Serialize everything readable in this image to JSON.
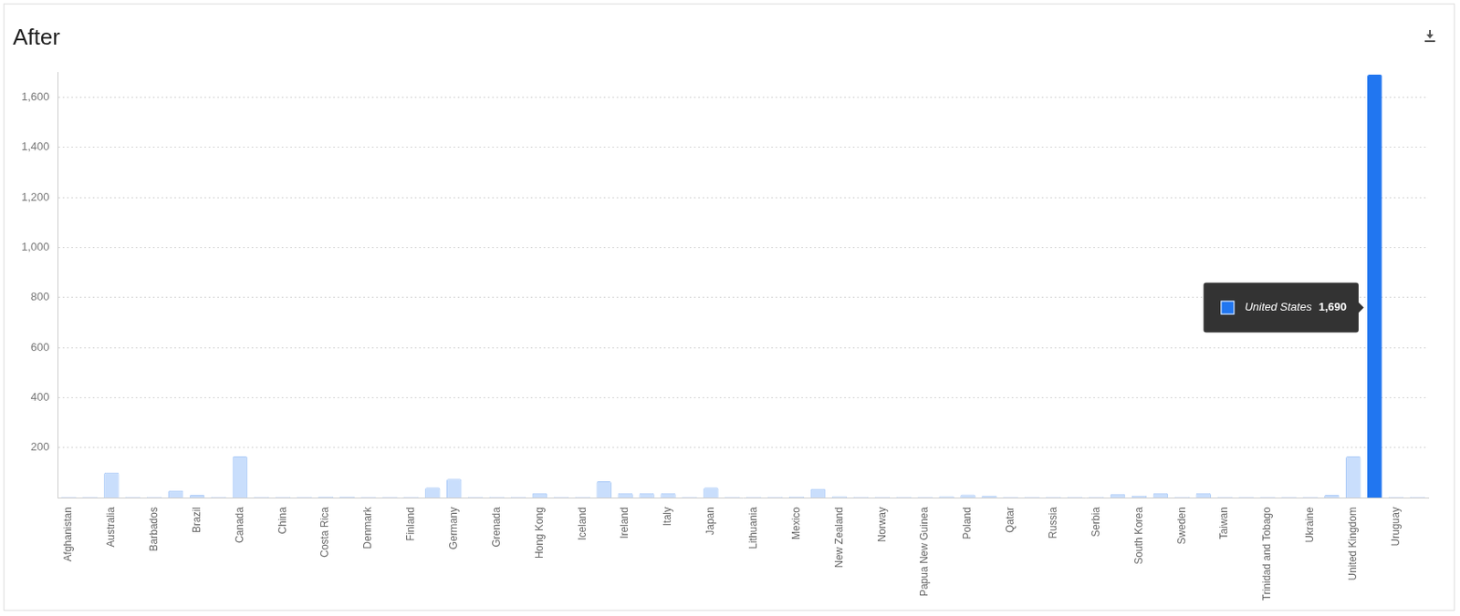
{
  "chart_data": {
    "type": "bar",
    "title": "After",
    "categories": [
      "Afghanistan",
      null,
      "Australia",
      null,
      "Barbados",
      null,
      "Brazil",
      null,
      "Canada",
      null,
      "China",
      null,
      "Costa Rica",
      null,
      "Denmark",
      null,
      "Finland",
      null,
      "Germany",
      null,
      "Grenada",
      null,
      "Hong Kong",
      null,
      "Iceland",
      null,
      "Ireland",
      null,
      "Italy",
      null,
      "Japan",
      null,
      "Lithuania",
      null,
      "Mexico",
      null,
      "New Zealand",
      null,
      "Norway",
      null,
      "Papua New Guinea",
      null,
      "Poland",
      null,
      "Qatar",
      null,
      "Russia",
      null,
      "Serbia",
      null,
      "South Korea",
      null,
      "Sweden",
      null,
      "Taiwan",
      null,
      "Trinidad and Tobago",
      null,
      "Ukraine",
      null,
      "United Kingdom",
      null,
      "Uruguay",
      null
    ],
    "values": [
      3,
      3,
      100,
      3,
      3,
      28,
      10,
      3,
      165,
      3,
      3,
      3,
      4,
      4,
      3,
      3,
      3,
      40,
      75,
      3,
      3,
      3,
      18,
      3,
      3,
      65,
      18,
      18,
      18,
      3,
      40,
      3,
      3,
      3,
      4,
      35,
      5,
      3,
      3,
      3,
      3,
      5,
      12,
      8,
      3,
      3,
      3,
      3,
      3,
      15,
      8,
      18,
      3,
      18,
      3,
      3,
      3,
      3,
      3,
      10,
      165,
      1690,
      3,
      3
    ],
    "color": "#c9defc",
    "ylim": [
      0,
      1700
    ],
    "yticks": [
      200,
      400,
      600,
      800,
      {
        "value": 1000,
        "label": "1,000"
      },
      {
        "value": 1200,
        "label": "1,200"
      },
      {
        "value": 1400,
        "label": "1,400"
      },
      {
        "value": 1600,
        "label": "1,600"
      }
    ],
    "grid": true,
    "annotations": [
      {
        "text": "United States",
        "value": 1690,
        "value_label": "1,690",
        "color": "#2176f0"
      }
    ]
  }
}
